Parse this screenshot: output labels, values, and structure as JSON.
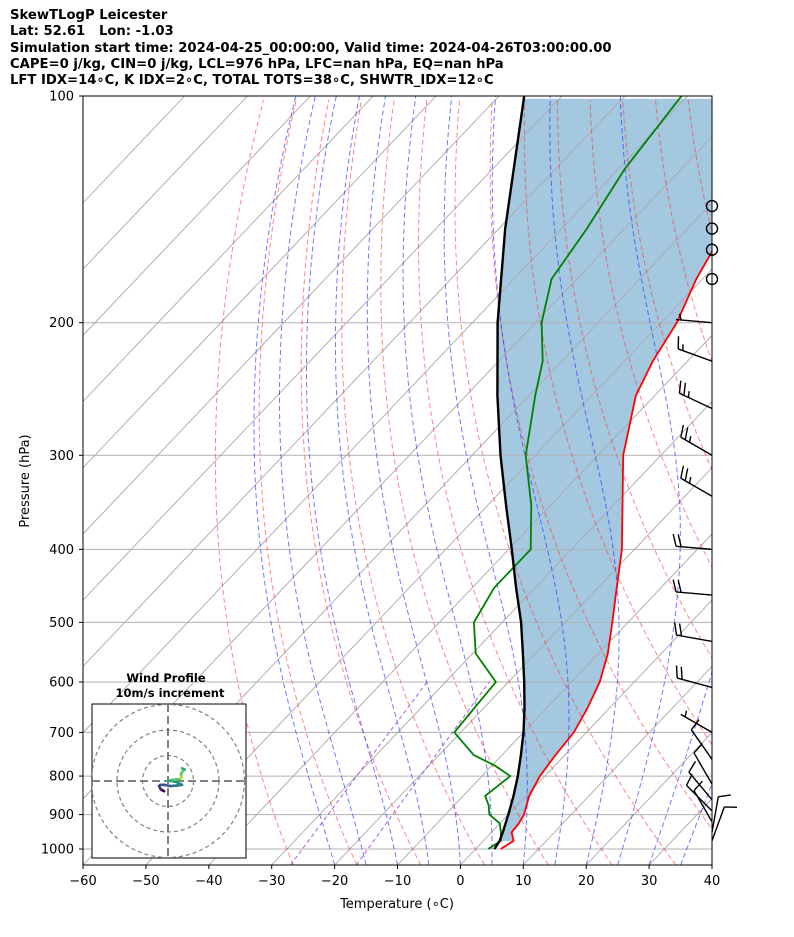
{
  "header": {
    "title": "SkewTLogP Leicester",
    "location": "Lat: 52.61   Lon: -1.03",
    "times": "Simulation start time: 2024-04-25_00:00:00, Valid time: 2024-04-26T03:00:00.00",
    "indices_1": "CAPE=0 j/kg, CIN=0 j/kg, LCL=976 hPa, LFC=nan hPa, EQ=nan hPa",
    "indices_2": "LFT IDX=14∘C, K IDX=2∘C, TOTAL TOTS=38∘C, SHWTR_IDX=12∘C"
  },
  "chart_data": {
    "type": "skewt-logp",
    "xlabel": "Temperature (∘C)",
    "ylabel": "Pressure (hPa)",
    "xlim": [
      -60,
      40
    ],
    "ylim": [
      1050,
      100
    ],
    "x_ticks": [
      -60,
      -50,
      -40,
      -30,
      -20,
      -10,
      0,
      10,
      20,
      30,
      40
    ],
    "y_ticks": [
      100,
      200,
      300,
      400,
      500,
      600,
      700,
      800,
      900,
      1000
    ],
    "grid": true,
    "series": [
      {
        "key": "temperature",
        "color": "#ff0000",
        "points": [
          [
            1000,
            4.0
          ],
          [
            975,
            4.8
          ],
          [
            950,
            3.2
          ],
          [
            925,
            3.0
          ],
          [
            900,
            2.5
          ],
          [
            850,
            0.5
          ],
          [
            800,
            -0.8
          ],
          [
            750,
            -1.5
          ],
          [
            700,
            -2.0
          ],
          [
            650,
            -3.5
          ],
          [
            600,
            -5.5
          ],
          [
            550,
            -8.5
          ],
          [
            500,
            -12.5
          ],
          [
            450,
            -17.0
          ],
          [
            400,
            -22.0
          ],
          [
            350,
            -28.5
          ],
          [
            300,
            -36.0
          ],
          [
            250,
            -43.0
          ],
          [
            225,
            -45.5
          ],
          [
            200,
            -47.5
          ],
          [
            175,
            -51.0
          ],
          [
            150,
            -54.0
          ],
          [
            125,
            -59.0
          ],
          [
            110,
            -61.0
          ],
          [
            100,
            -63.5
          ]
        ]
      },
      {
        "key": "dewpoint",
        "color": "#008000",
        "points": [
          [
            1000,
            2.0
          ],
          [
            975,
            2.8
          ],
          [
            950,
            1.5
          ],
          [
            925,
            0.0
          ],
          [
            900,
            -3.0
          ],
          [
            875,
            -4.5
          ],
          [
            850,
            -6.5
          ],
          [
            825,
            -6.0
          ],
          [
            800,
            -5.5
          ],
          [
            775,
            -9.5
          ],
          [
            750,
            -14.5
          ],
          [
            700,
            -21.0
          ],
          [
            650,
            -21.5
          ],
          [
            600,
            -22.0
          ],
          [
            550,
            -29.5
          ],
          [
            500,
            -34.5
          ],
          [
            450,
            -36.5
          ],
          [
            400,
            -36.5
          ],
          [
            350,
            -43.0
          ],
          [
            300,
            -51.5
          ],
          [
            250,
            -59.0
          ],
          [
            225,
            -63.0
          ],
          [
            200,
            -69.0
          ],
          [
            175,
            -74.0
          ],
          [
            150,
            -76.0
          ],
          [
            125,
            -79.0
          ],
          [
            100,
            -81.0
          ]
        ]
      },
      {
        "key": "parcel",
        "color": "#000000",
        "points": [
          [
            1000,
            3.0
          ],
          [
            976,
            2.6
          ],
          [
            950,
            1.8
          ],
          [
            900,
            0.0
          ],
          [
            850,
            -2.0
          ],
          [
            800,
            -4.3
          ],
          [
            750,
            -7.0
          ],
          [
            700,
            -10.0
          ],
          [
            650,
            -13.5
          ],
          [
            600,
            -17.5
          ],
          [
            550,
            -22.0
          ],
          [
            500,
            -27.0
          ],
          [
            450,
            -33.0
          ],
          [
            400,
            -39.5
          ],
          [
            350,
            -47.0
          ],
          [
            300,
            -55.5
          ],
          [
            250,
            -65.0
          ],
          [
            200,
            -76.0
          ],
          [
            150,
            -89.0
          ],
          [
            100,
            -106.0
          ]
        ]
      }
    ],
    "shading": {
      "between": [
        "temperature",
        "parcel"
      ],
      "color": "#a5c8e1"
    },
    "wind_barbs": {
      "x_position_temp": 40,
      "levels": [
        {
          "p": 140,
          "calm": true
        },
        {
          "p": 150,
          "calm": true
        },
        {
          "p": 160,
          "calm": true
        },
        {
          "p": 175,
          "calm": true
        },
        {
          "p": 200,
          "dir": 275,
          "speed_kt": 5
        },
        {
          "p": 225,
          "dir": 290,
          "speed_kt": 15
        },
        {
          "p": 260,
          "dir": 295,
          "speed_kt": 25
        },
        {
          "p": 300,
          "dir": 300,
          "speed_kt": 25
        },
        {
          "p": 340,
          "dir": 300,
          "speed_kt": 25
        },
        {
          "p": 400,
          "dir": 275,
          "speed_kt": 20
        },
        {
          "p": 460,
          "dir": 275,
          "speed_kt": 20
        },
        {
          "p": 530,
          "dir": 280,
          "speed_kt": 20
        },
        {
          "p": 610,
          "dir": 285,
          "speed_kt": 20
        },
        {
          "p": 700,
          "dir": 300,
          "speed_kt": 5
        },
        {
          "p": 760,
          "dir": 325,
          "speed_kt": 10
        },
        {
          "p": 820,
          "dir": 330,
          "speed_kt": 10
        },
        {
          "p": 860,
          "dir": 320,
          "speed_kt": 10
        },
        {
          "p": 890,
          "dir": 315,
          "speed_kt": 10
        },
        {
          "p": 920,
          "dir": 330,
          "speed_kt": 10
        },
        {
          "p": 950,
          "dir": 10,
          "speed_kt": 10
        },
        {
          "p": 975,
          "dir": 20,
          "speed_kt": 10
        }
      ]
    },
    "inset": {
      "title": "Wind Profile",
      "subtitle": "10m/s increment",
      "rings_ms": [
        10,
        20,
        30
      ],
      "hodograph_uv": [
        [
          -1.5,
          -4.0
        ],
        [
          -2.5,
          -3.5
        ],
        [
          -3.0,
          -3.0
        ],
        [
          -3.5,
          -2.0
        ],
        [
          -3.0,
          -1.5
        ],
        [
          -1.5,
          -1.5
        ],
        [
          1.0,
          -2.0
        ],
        [
          3.5,
          -1.8
        ],
        [
          5.5,
          -1.5
        ],
        [
          3.5,
          -0.5
        ],
        [
          1.5,
          0.0
        ],
        [
          0.0,
          0.0
        ],
        [
          2.0,
          0.5
        ],
        [
          4.0,
          0.7
        ],
        [
          5.0,
          1.0
        ],
        [
          5.3,
          1.8
        ],
        [
          5.0,
          2.5
        ],
        [
          5.5,
          3.5
        ],
        [
          6.5,
          4.5
        ],
        [
          5.5,
          5.0
        ]
      ]
    }
  }
}
